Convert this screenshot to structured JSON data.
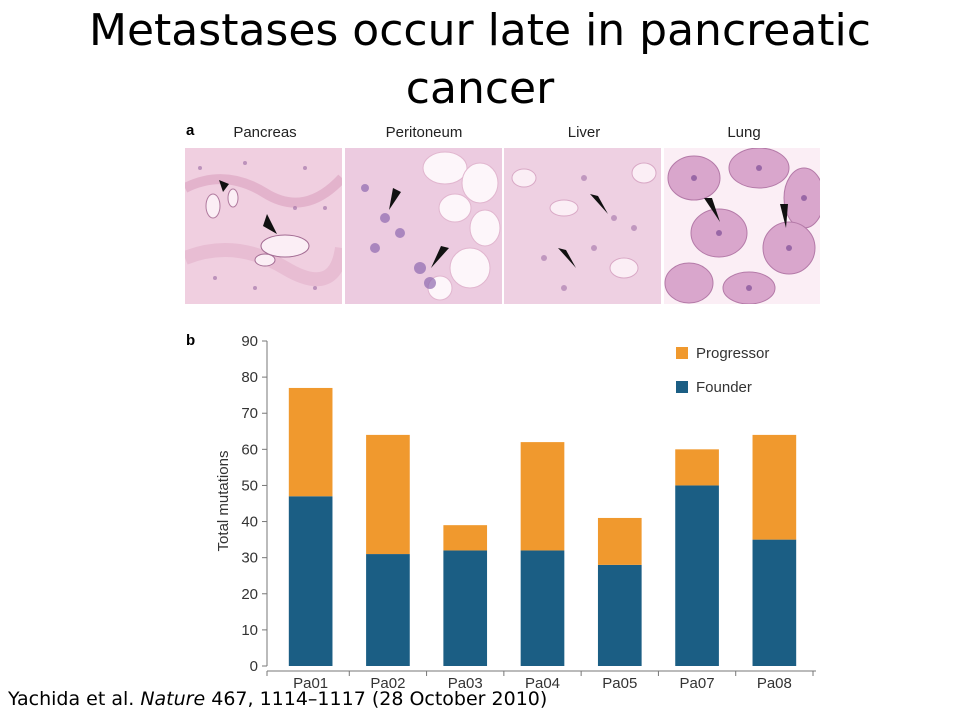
{
  "slide": {
    "title_line1": "Metastases occur late in pancreatic",
    "title_line2": "cancer",
    "citation_prefix": "Yachida et al. ",
    "citation_journal": "Nature",
    "citation_suffix": " 467, 1114–1117 (28 October 2010)"
  },
  "panel_a": {
    "letter": "a",
    "tissues": [
      "Pancreas",
      "Peritoneum",
      "Liver",
      "Lung"
    ]
  },
  "panel_b": {
    "letter": "b"
  },
  "colors": {
    "founder": "#1b5e84",
    "progressor": "#f0992e",
    "tissue_bg": "#f2d6e4"
  },
  "chart_data": {
    "type": "bar",
    "stacked": true,
    "categories": [
      "Pa01",
      "Pa02",
      "Pa03",
      "Pa04",
      "Pa05",
      "Pa07",
      "Pa08"
    ],
    "series": [
      {
        "name": "Founder",
        "values": [
          47,
          31,
          32,
          32,
          28,
          50,
          35
        ]
      },
      {
        "name": "Progressor",
        "values": [
          30,
          33,
          7,
          30,
          13,
          10,
          29
        ]
      }
    ],
    "ylabel": "Total mutations",
    "xlabel": "",
    "ylim": [
      0,
      90
    ],
    "yticks": [
      0,
      10,
      20,
      30,
      40,
      50,
      60,
      70,
      80,
      90
    ],
    "legend": {
      "position": "top-right",
      "order": [
        "Progressor",
        "Founder"
      ]
    },
    "grid": false
  }
}
